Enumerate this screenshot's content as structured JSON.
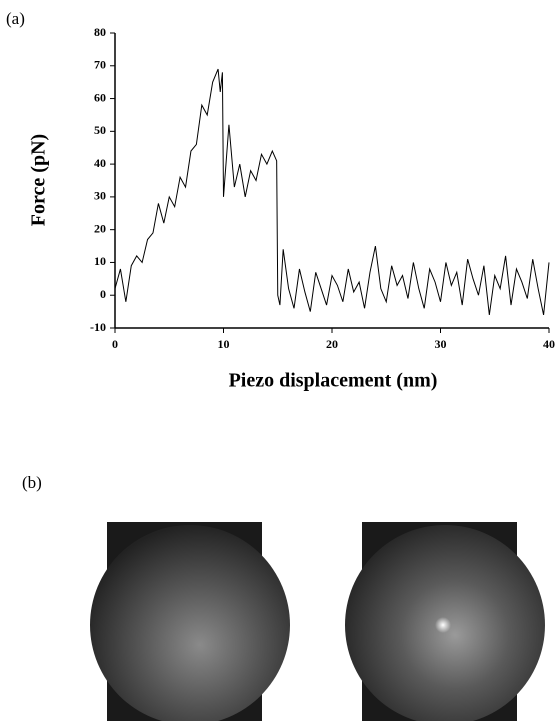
{
  "panels": [
    "(a)",
    "(b)"
  ],
  "chart_data": {
    "type": "line",
    "x_label": "Piezo displacement (nm)",
    "y_label": "Force (pN)",
    "color": "#000000",
    "x": [
      0,
      0.5,
      1,
      1.5,
      2,
      2.5,
      3,
      3.5,
      4,
      4.5,
      5,
      5.5,
      6,
      6.5,
      7,
      7.5,
      8,
      8.5,
      9,
      9.5,
      9.7,
      9.9,
      10,
      10.5,
      11,
      11.5,
      12,
      12.5,
      13,
      13.5,
      14,
      14.5,
      14.9,
      15,
      15.2,
      15.5,
      16,
      16.5,
      17,
      17.5,
      18,
      18.5,
      19,
      19.5,
      20,
      20.5,
      21,
      21.5,
      22,
      22.5,
      23,
      23.5,
      24,
      24.5,
      25,
      25.5,
      26,
      26.5,
      27,
      27.5,
      28,
      28.5,
      29,
      29.5,
      30,
      30.5,
      31,
      31.5,
      32,
      32.5,
      33,
      33.5,
      34,
      34.5,
      35,
      35.5,
      36,
      36.5,
      37,
      37.5,
      38,
      38.5,
      39,
      39.5,
      40
    ],
    "values": [
      2,
      8,
      -2,
      9,
      12,
      10,
      17,
      19,
      28,
      22,
      30,
      27,
      36,
      33,
      44,
      46,
      58,
      55,
      65,
      69,
      62,
      68,
      30,
      52,
      33,
      40,
      30,
      38,
      35,
      43,
      40,
      44,
      41,
      0,
      -3,
      14,
      2,
      -4,
      8,
      1,
      -5,
      7,
      2,
      -3,
      6,
      3,
      -2,
      8,
      1,
      4,
      -4,
      7,
      15,
      2,
      -2,
      9,
      3,
      6,
      -1,
      10,
      2,
      -4,
      8,
      4,
      -2,
      10,
      3,
      7,
      -3,
      11,
      5,
      0,
      9,
      -6,
      6,
      2,
      12,
      -3,
      8,
      4,
      -1,
      11,
      2,
      -6,
      10
    ],
    "xlim": [
      0,
      40
    ],
    "ylim": [
      -10,
      80
    ],
    "xticks": [
      0,
      10,
      20,
      30,
      40
    ],
    "yticks": [
      -10,
      0,
      10,
      20,
      30,
      40,
      50,
      60,
      70,
      80
    ]
  }
}
